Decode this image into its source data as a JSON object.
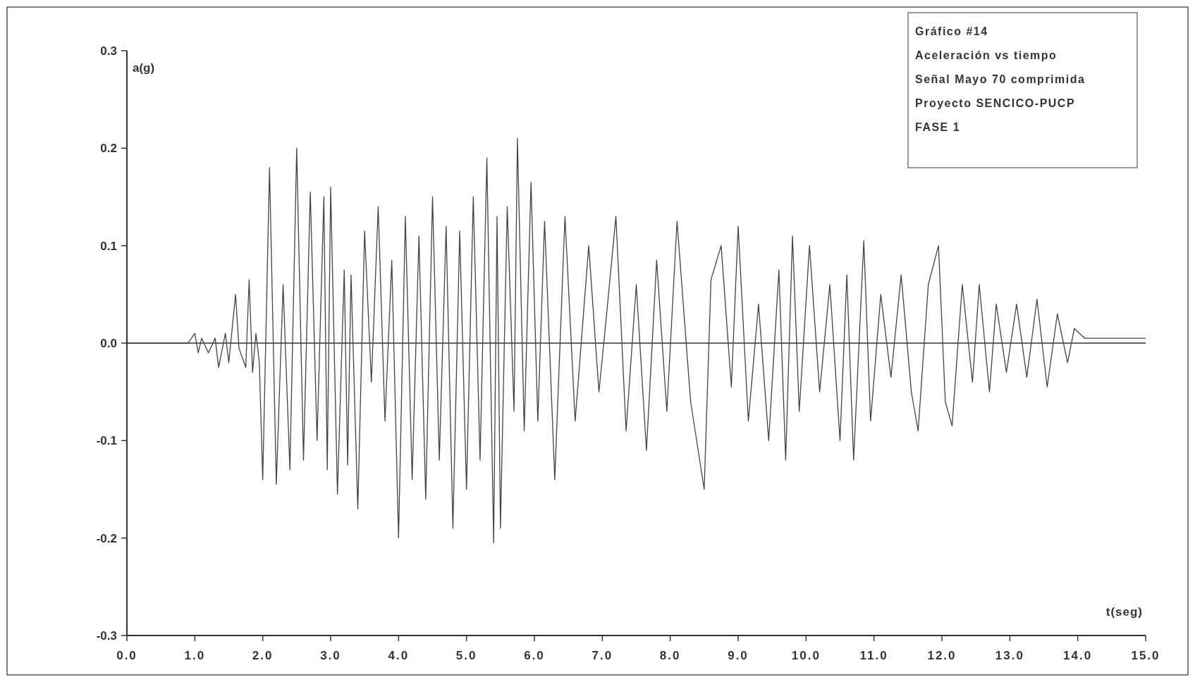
{
  "chart_data": {
    "type": "line",
    "xlabel": "t(seg)",
    "ylabel": "a(g)",
    "annotations": [
      "Gráfico #14",
      "Aceleración vs tiempo",
      "Señal Mayo 70 comprimida",
      "Proyecto SENCICO-PUCP",
      "FASE 1"
    ],
    "xlim": [
      0,
      15
    ],
    "ylim": [
      -0.3,
      0.3
    ],
    "xticks": [
      {
        "value": 0,
        "label": "0.0"
      },
      {
        "value": 1,
        "label": "1.0"
      },
      {
        "value": 2,
        "label": "2.0"
      },
      {
        "value": 3,
        "label": "3.0"
      },
      {
        "value": 4,
        "label": "4.0"
      },
      {
        "value": 5,
        "label": "5.0"
      },
      {
        "value": 6,
        "label": "6.0"
      },
      {
        "value": 7,
        "label": "7.0"
      },
      {
        "value": 8,
        "label": "8.0"
      },
      {
        "value": 9,
        "label": "9.0"
      },
      {
        "value": 10,
        "label": "10.0"
      },
      {
        "value": 11,
        "label": "11.0"
      },
      {
        "value": 12,
        "label": "12.0"
      },
      {
        "value": 13,
        "label": "13.0"
      },
      {
        "value": 14,
        "label": "14.0"
      },
      {
        "value": 15,
        "label": "15.0"
      }
    ],
    "yticks": [
      -0.3,
      -0.2,
      -0.1,
      {
        "value": 0,
        "label": "0.0"
      },
      0.1,
      0.2,
      0.3
    ],
    "ref_lines": [
      {
        "axis": "y",
        "value": 0,
        "color": "#333333"
      }
    ],
    "grid": false,
    "marker": "none",
    "line_style": "solid",
    "series": [
      {
        "color": "#444444",
        "x": [
          0,
          0.9,
          1.0,
          1.05,
          1.1,
          1.2,
          1.3,
          1.35,
          1.45,
          1.5,
          1.6,
          1.65,
          1.75,
          1.8,
          1.85,
          1.9,
          1.95,
          2.0,
          2.1,
          2.2,
          2.3,
          2.4,
          2.5,
          2.6,
          2.7,
          2.8,
          2.9,
          2.95,
          3.0,
          3.1,
          3.2,
          3.25,
          3.3,
          3.4,
          3.5,
          3.6,
          3.7,
          3.8,
          3.9,
          4.0,
          4.1,
          4.2,
          4.3,
          4.4,
          4.5,
          4.6,
          4.7,
          4.8,
          4.9,
          5.0,
          5.1,
          5.2,
          5.3,
          5.4,
          5.45,
          5.5,
          5.6,
          5.7,
          5.75,
          5.85,
          5.95,
          6.05,
          6.15,
          6.3,
          6.45,
          6.6,
          6.8,
          6.95,
          7.05,
          7.2,
          7.35,
          7.5,
          7.65,
          7.8,
          7.95,
          8.1,
          8.3,
          8.5,
          8.6,
          8.75,
          8.9,
          9.0,
          9.15,
          9.3,
          9.45,
          9.6,
          9.7,
          9.8,
          9.9,
          10.05,
          10.2,
          10.35,
          10.5,
          10.6,
          10.7,
          10.85,
          10.95,
          11.1,
          11.25,
          11.4,
          11.55,
          11.65,
          11.8,
          11.95,
          12.05,
          12.15,
          12.3,
          12.45,
          12.55,
          12.7,
          12.8,
          12.95,
          13.1,
          13.25,
          13.4,
          13.55,
          13.7,
          13.85,
          13.95,
          14.1,
          15.0
        ],
        "values": [
          0,
          0,
          0.01,
          -0.01,
          0.005,
          -0.01,
          0.005,
          -0.025,
          0.01,
          -0.02,
          0.05,
          -0.005,
          -0.025,
          0.065,
          -0.03,
          0.01,
          -0.02,
          -0.14,
          0.18,
          -0.145,
          0.06,
          -0.13,
          0.2,
          -0.12,
          0.155,
          -0.1,
          0.15,
          -0.13,
          0.16,
          -0.155,
          0.075,
          -0.125,
          0.07,
          -0.17,
          0.115,
          -0.04,
          0.14,
          -0.08,
          0.085,
          -0.2,
          0.13,
          -0.14,
          0.11,
          -0.16,
          0.15,
          -0.12,
          0.12,
          -0.19,
          0.115,
          -0.15,
          0.15,
          -0.12,
          0.19,
          -0.205,
          0.13,
          -0.19,
          0.14,
          -0.07,
          0.21,
          -0.09,
          0.165,
          -0.08,
          0.125,
          -0.14,
          0.13,
          -0.08,
          0.1,
          -0.05,
          0.02,
          0.13,
          -0.09,
          0.06,
          -0.11,
          0.085,
          -0.07,
          0.125,
          -0.06,
          -0.15,
          0.065,
          0.1,
          -0.045,
          0.12,
          -0.08,
          0.04,
          -0.1,
          0.075,
          -0.12,
          0.11,
          -0.07,
          0.1,
          -0.05,
          0.06,
          -0.1,
          0.07,
          -0.12,
          0.105,
          -0.08,
          0.05,
          -0.035,
          0.07,
          -0.05,
          -0.09,
          0.06,
          0.1,
          -0.06,
          -0.085,
          0.06,
          -0.04,
          0.06,
          -0.05,
          0.04,
          -0.03,
          0.04,
          -0.035,
          0.045,
          -0.045,
          0.03,
          -0.02,
          0.015,
          0.005,
          0.005
        ]
      }
    ]
  }
}
